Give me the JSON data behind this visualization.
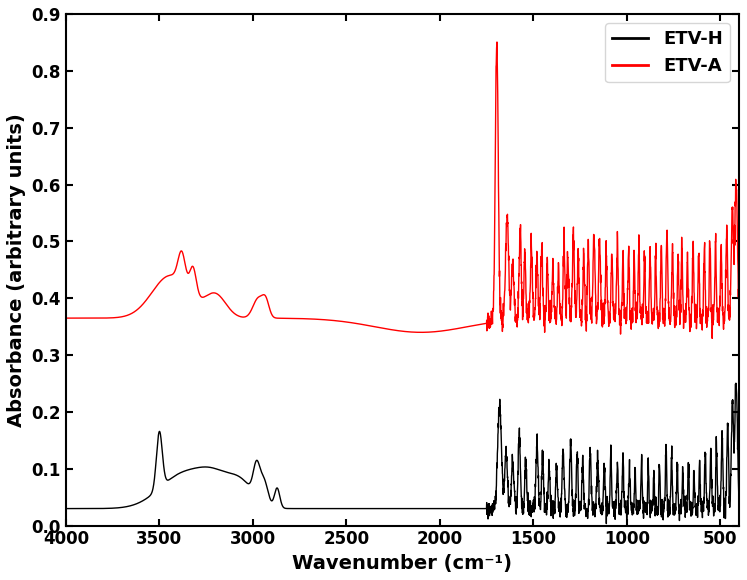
{
  "title": "",
  "xlabel": "Wavenumber (cm⁻¹)",
  "ylabel": "Absorbance (arbitrary units)",
  "xlim": [
    4000,
    400
  ],
  "ylim": [
    0.0,
    0.9
  ],
  "yticks": [
    0.0,
    0.1,
    0.2,
    0.3,
    0.4,
    0.5,
    0.6,
    0.7,
    0.8,
    0.9
  ],
  "xticks": [
    4000,
    3500,
    3000,
    2500,
    2000,
    1500,
    1000,
    500
  ],
  "legend_labels": [
    "ETV-H",
    "ETV-A"
  ],
  "legend_colors": [
    "#000000",
    "#ff0000"
  ],
  "line_width": 1.0,
  "background_color": "#ffffff",
  "spine_color": "#000000",
  "tick_color": "#000000",
  "label_fontsize": 14,
  "legend_fontsize": 13,
  "tick_fontsize": 12
}
